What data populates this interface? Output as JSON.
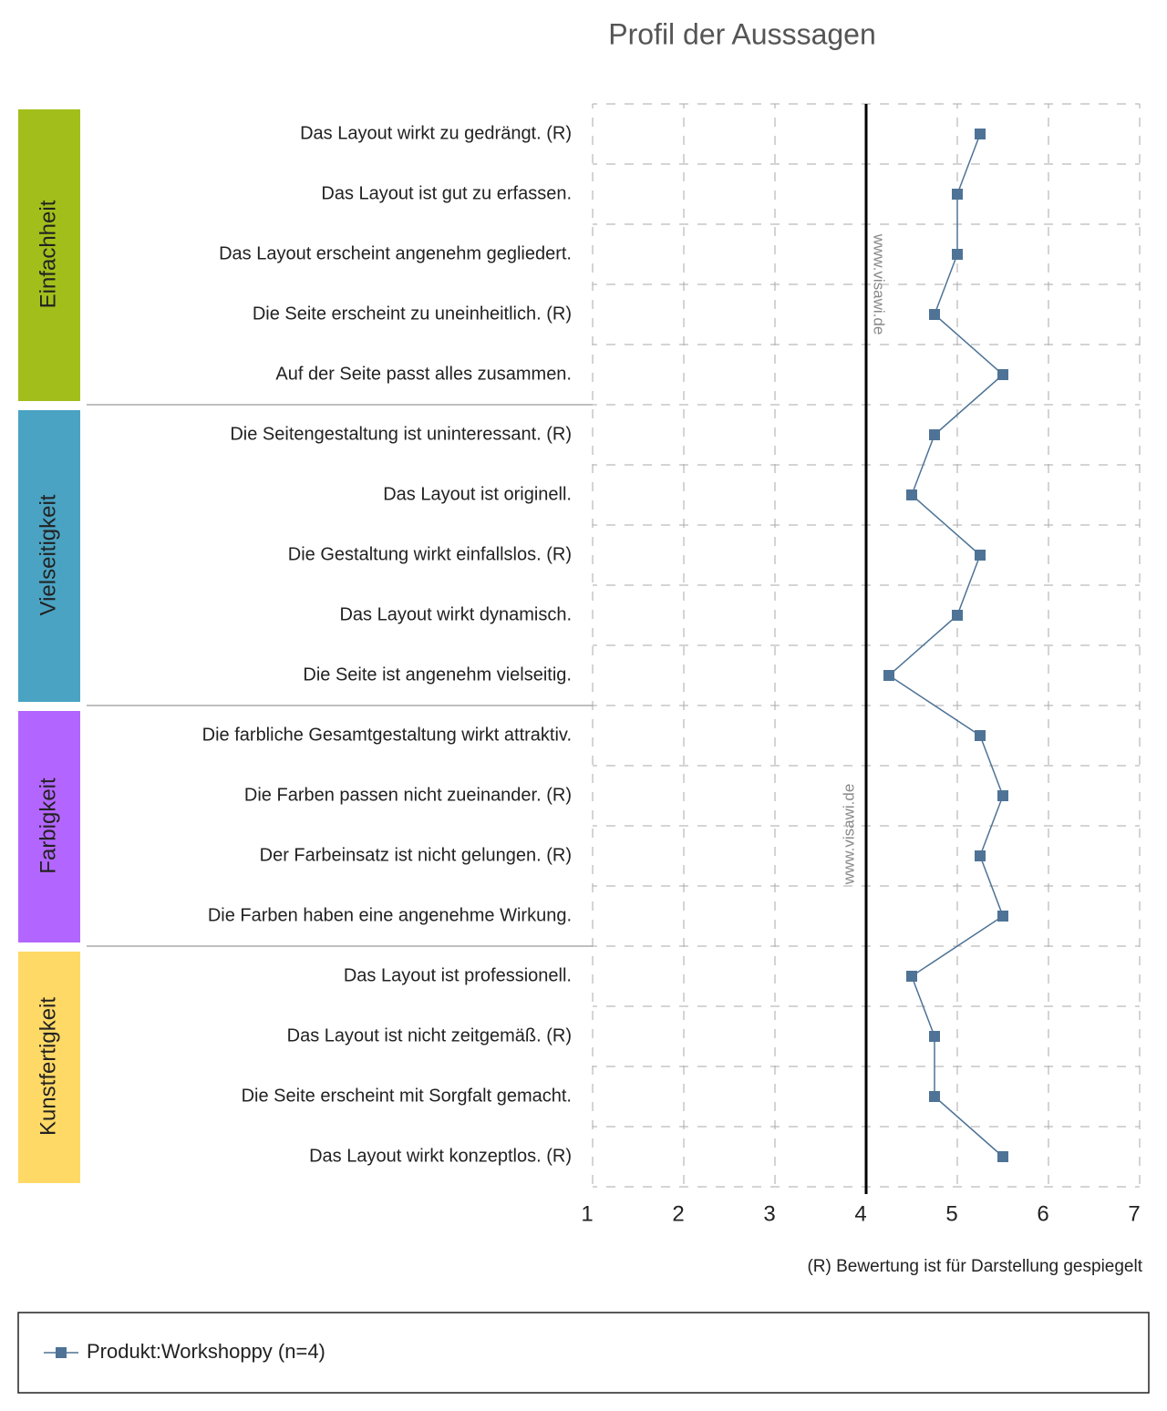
{
  "chart_data": {
    "type": "profile",
    "title": "Profil der Ausssagen",
    "groups": [
      {
        "name": "Einfachheit",
        "color": "#a2be1b",
        "items": [
          "Das Layout wirkt zu gedrängt. (R)",
          "Das Layout ist gut zu erfassen.",
          "Das Layout erscheint angenehm gegliedert.",
          "Die Seite erscheint zu uneinheitlich. (R)",
          "Auf der Seite passt alles zusammen."
        ]
      },
      {
        "name": "Vielseitigkeit",
        "color": "#4aa3c2",
        "items": [
          "Die Seitengestaltung ist uninteressant. (R)",
          "Das Layout ist originell.",
          "Die Gestaltung wirkt einfallslos. (R)",
          "Das Layout wirkt dynamisch.",
          "Die Seite ist angenehm vielseitig."
        ]
      },
      {
        "name": "Farbigkeit",
        "color": "#b366ff",
        "items": [
          "Die farbliche Gesamtgestaltung wirkt attraktiv.",
          "Die Farben passen nicht zueinander. (R)",
          "Der Farbeinsatz ist nicht gelungen. (R)",
          "Die Farben haben eine angenehme Wirkung."
        ]
      },
      {
        "name": "Kunstfertigkeit",
        "color": "#ffd966",
        "items": [
          "Das Layout ist professionell.",
          "Das Layout ist nicht zeitgemäß. (R)",
          "Die Seite erscheint mit Sorgfalt gemacht.",
          "Das Layout wirkt konzeptlos. (R)"
        ]
      }
    ],
    "series": [
      {
        "name": "Produkt:Workshoppy (n=4)",
        "color": "#4e7396",
        "values": [
          5.25,
          5,
          5,
          4.75,
          5.5,
          4.75,
          4.5,
          5.25,
          5,
          4.25,
          5.25,
          5.5,
          5.25,
          5.5,
          4.5,
          4.75,
          4.75,
          5.5
        ]
      }
    ],
    "xlim": [
      1,
      7
    ],
    "xticks": [
      1,
      2,
      3,
      4,
      5,
      6,
      7
    ],
    "midline": 4,
    "grid": true,
    "note": "(R) Bewertung ist für Darstellung gespiegelt",
    "watermark": "www.visawi.de"
  }
}
